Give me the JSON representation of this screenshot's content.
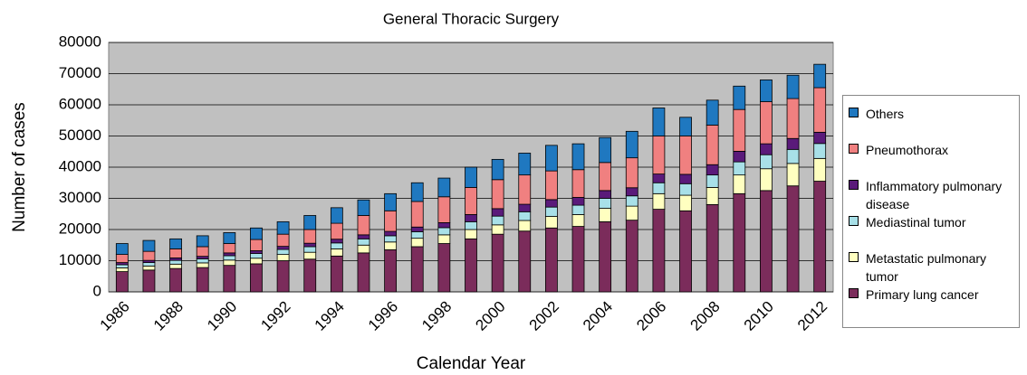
{
  "chart_data": {
    "type": "stacked_bar",
    "title": "General Thoracic Surgery",
    "x_label": "Calendar Year",
    "y_label": "Number of cases",
    "categories": [
      "1986",
      null,
      "1988",
      null,
      "1990",
      null,
      "1992",
      null,
      "1994",
      null,
      "1996",
      null,
      "1998",
      null,
      "2000",
      null,
      "2002",
      null,
      "2004",
      null,
      "2006",
      null,
      "2008",
      null,
      "2010",
      null,
      "2012"
    ],
    "ylim": [
      0,
      80000
    ],
    "yticks": [
      0,
      10000,
      20000,
      30000,
      40000,
      50000,
      60000,
      70000,
      80000
    ],
    "grid": true,
    "legend": "right",
    "series": [
      {
        "name": "Primary lung cancer",
        "color": "#7b2c5b",
        "values": [
          6500,
          7000,
          7500,
          7800,
          8500,
          9000,
          10000,
          10500,
          11500,
          12500,
          13500,
          14500,
          15500,
          17000,
          18500,
          19500,
          20500,
          21000,
          22500,
          23000,
          26500,
          26000,
          28000,
          31500,
          32500,
          34000,
          35500
        ]
      },
      {
        "name": "Metastatic pulmonary tumor",
        "color": "#ffffc0",
        "values": [
          1200,
          1300,
          1400,
          1500,
          1700,
          1800,
          2000,
          2200,
          2300,
          2500,
          2500,
          2700,
          2800,
          3000,
          3000,
          3400,
          3700,
          3800,
          4300,
          4500,
          5000,
          5000,
          5500,
          6000,
          7000,
          7200,
          7300
        ]
      },
      {
        "name": "Mediastinal tumor",
        "color": "#a8e0e8",
        "values": [
          1000,
          1100,
          1200,
          1300,
          1400,
          1500,
          1600,
          1800,
          1900,
          2000,
          2000,
          2100,
          2300,
          2500,
          2800,
          2800,
          3000,
          3000,
          3200,
          3300,
          3500,
          3700,
          4000,
          4200,
          4500,
          4500,
          4800
        ]
      },
      {
        "name": "Inflammatory pulmonary disease",
        "color": "#5a1a7a",
        "values": [
          700,
          700,
          800,
          800,
          900,
          900,
          1000,
          1100,
          1200,
          1300,
          1400,
          1500,
          1600,
          2300,
          2400,
          2400,
          2400,
          2500,
          2500,
          2600,
          2800,
          3000,
          3300,
          3400,
          3500,
          3500,
          3600
        ]
      },
      {
        "name": "Pneumothorax",
        "color": "#f08080",
        "values": [
          2600,
          2900,
          2900,
          3100,
          3000,
          3600,
          3900,
          4400,
          5100,
          6200,
          6600,
          8200,
          8300,
          8700,
          9300,
          9400,
          9200,
          8900,
          9000,
          9600,
          12200,
          12300,
          12700,
          13400,
          13500,
          12800,
          14300
        ]
      },
      {
        "name": "Others",
        "color": "#1f78c0",
        "values": [
          3500,
          3500,
          3200,
          3500,
          3500,
          3700,
          4000,
          4500,
          5000,
          5000,
          5500,
          6000,
          6000,
          6500,
          6500,
          7000,
          8200,
          8300,
          8000,
          8500,
          9000,
          6000,
          8000,
          7500,
          7000,
          7500,
          7500
        ]
      }
    ]
  }
}
